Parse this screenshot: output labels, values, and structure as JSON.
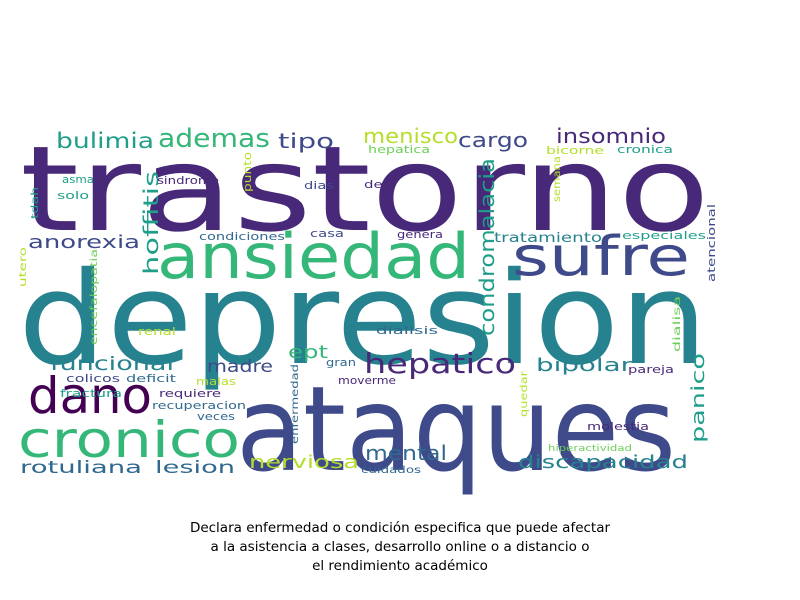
{
  "caption": {
    "line1": "Declara enfermedad o condición especifica que puede afectar",
    "line2": "a la asistencia a clases, desarrollo online o a distancio o",
    "line3": "el rendimiento académico"
  },
  "palette": {
    "dark_purple": "#482878",
    "indigo": "#3e4a89",
    "slate": "#31688e",
    "teal": "#26828e",
    "sea": "#1f9e89",
    "green": "#35b779",
    "lime": "#6ece58",
    "yellow": "#b5de2b",
    "deep": "#440154"
  },
  "words": [
    {
      "text": "trastorno"
    },
    {
      "text": "depresion"
    },
    {
      "text": "ataques"
    },
    {
      "text": "ansiedad"
    },
    {
      "text": "sufre"
    },
    {
      "text": "cronico"
    },
    {
      "text": "dano"
    },
    {
      "text": "hepatico"
    },
    {
      "text": "condromalacia"
    },
    {
      "text": "hoffitis"
    },
    {
      "text": "ademas"
    },
    {
      "text": "bulimia"
    },
    {
      "text": "tipo"
    },
    {
      "text": "menisco"
    },
    {
      "text": "cargo"
    },
    {
      "text": "insomnio"
    },
    {
      "text": "anorexia"
    },
    {
      "text": "funcional"
    },
    {
      "text": "madre"
    },
    {
      "text": "ept"
    },
    {
      "text": "bipolar"
    },
    {
      "text": "panico"
    },
    {
      "text": "mental"
    },
    {
      "text": "nerviosa"
    },
    {
      "text": "discapacidad"
    },
    {
      "text": "rotuliana"
    },
    {
      "text": "lesion"
    },
    {
      "text": "tratamiento"
    },
    {
      "text": "especiales"
    },
    {
      "text": "atencional"
    },
    {
      "text": "hepatica"
    },
    {
      "text": "cronica"
    },
    {
      "text": "bicorne"
    },
    {
      "text": "semana"
    },
    {
      "text": "asma"
    },
    {
      "text": "solo"
    },
    {
      "text": "tdah"
    },
    {
      "text": "poder"
    },
    {
      "text": "sindrome"
    },
    {
      "text": "punto"
    },
    {
      "text": "dias"
    },
    {
      "text": "deja"
    },
    {
      "text": "condiciones"
    },
    {
      "text": "casa"
    },
    {
      "text": "genera"
    },
    {
      "text": "utero"
    },
    {
      "text": "encefalopatia"
    },
    {
      "text": "renal"
    },
    {
      "text": "dialisis"
    },
    {
      "text": "dialisa"
    },
    {
      "text": "gran"
    },
    {
      "text": "colicos"
    },
    {
      "text": "deficit"
    },
    {
      "text": "malas"
    },
    {
      "text": "moverme"
    },
    {
      "text": "quedar"
    },
    {
      "text": "pareja"
    },
    {
      "text": "fractura"
    },
    {
      "text": "requiere"
    },
    {
      "text": "recuperacion"
    },
    {
      "text": "veces"
    },
    {
      "text": "enfermedad"
    },
    {
      "text": "molestia"
    },
    {
      "text": "hiperactividad"
    },
    {
      "text": "cuidados"
    }
  ]
}
